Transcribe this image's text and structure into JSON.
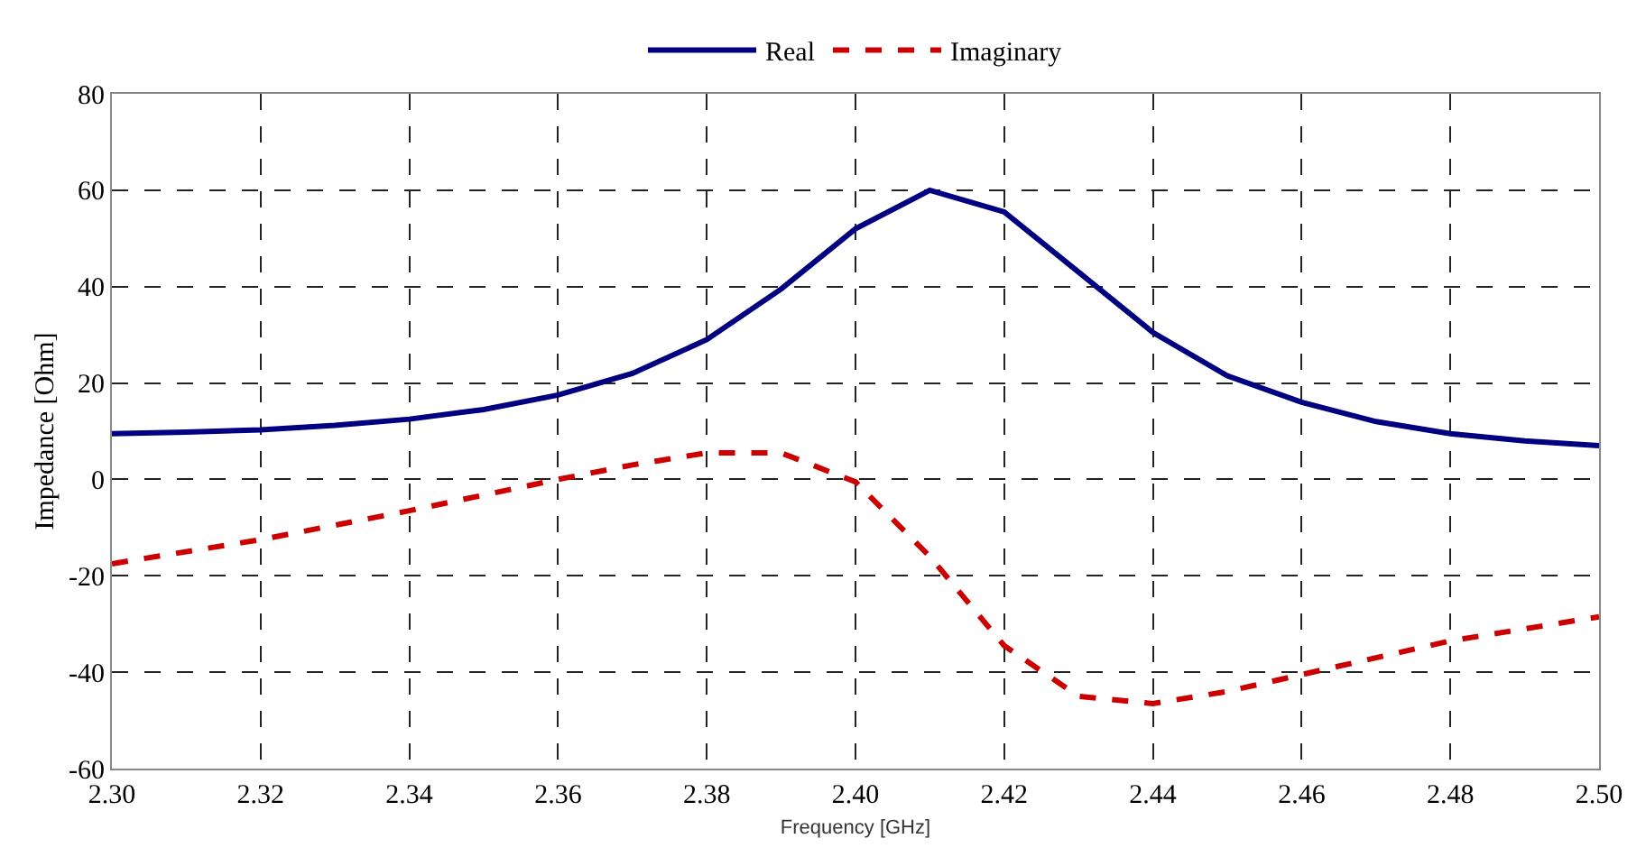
{
  "chart_data": {
    "type": "line",
    "xlabel": "Frequency [GHz]",
    "ylabel": "Impedance [Ohm]",
    "xlim": [
      2.3,
      2.5
    ],
    "xticks": [
      {
        "value": 2.3,
        "label": "2.30"
      },
      2.32,
      2.34,
      2.36,
      2.38,
      {
        "value": 2.4,
        "label": "2.40"
      },
      2.42,
      2.44,
      2.46,
      2.48,
      {
        "value": 2.5,
        "label": "2.50"
      }
    ],
    "ylim": [
      -60,
      80
    ],
    "yticks": [
      -60,
      -40,
      -20,
      0,
      20,
      40,
      60,
      80
    ],
    "grid": true,
    "legend": "top",
    "series": [
      {
        "name": "Real",
        "color": "#000080",
        "line_style": "solid",
        "x": [
          2.3,
          2.31,
          2.32,
          2.33,
          2.34,
          2.35,
          2.36,
          2.37,
          2.38,
          2.39,
          2.4,
          2.41,
          2.42,
          2.43,
          2.44,
          2.45,
          2.46,
          2.47,
          2.48,
          2.49,
          2.5
        ],
        "values": [
          9.5,
          9.8,
          10.3,
          11.2,
          12.5,
          14.5,
          17.5,
          22,
          29,
          39.5,
          52,
          60,
          55.5,
          43,
          30.5,
          21.5,
          16,
          12,
          9.5,
          8,
          7
        ]
      },
      {
        "name": "Imaginary",
        "color": "#cc0000",
        "line_style": "dashed",
        "x": [
          2.3,
          2.32,
          2.34,
          2.36,
          2.37,
          2.38,
          2.39,
          2.4,
          2.41,
          2.42,
          2.43,
          2.44,
          2.45,
          2.46,
          2.47,
          2.48,
          2.49,
          2.5
        ],
        "values": [
          -17.5,
          -12.5,
          -6.5,
          0,
          3,
          5.5,
          5.5,
          -0.5,
          -16,
          -34.5,
          -45,
          -46.5,
          -44,
          -40.5,
          -37,
          -33.5,
          -31,
          -28.5
        ]
      }
    ]
  }
}
